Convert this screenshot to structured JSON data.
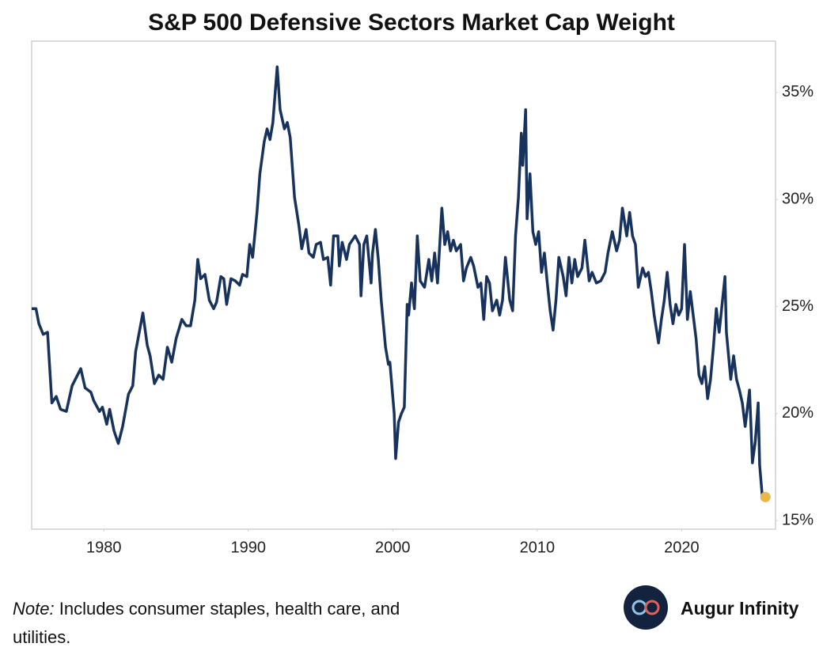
{
  "chart_data": {
    "type": "line",
    "title": "S&P 500 Defensive Sectors Market Cap Weight",
    "color": "#17325c",
    "highlight_color": "#e8b84a",
    "grid": false,
    "xlim": [
      1975,
      2026.5
    ],
    "xticks": [
      1980,
      1990,
      2000,
      2010,
      2020
    ],
    "ylim": [
      14.6,
      37.4
    ],
    "yticks": [
      {
        "value": 15,
        "label": "15%"
      },
      {
        "value": 20,
        "label": "20%"
      },
      {
        "value": 25,
        "label": "25%"
      },
      {
        "value": 30,
        "label": "30%"
      },
      {
        "value": 35,
        "label": "35%"
      }
    ],
    "x": [
      1975.0,
      1975.3,
      1975.5,
      1975.8,
      1976.1,
      1976.4,
      1976.7,
      1977.0,
      1977.4,
      1977.8,
      1978.4,
      1978.7,
      1979.1,
      1979.3,
      1979.7,
      1979.9,
      1980.2,
      1980.4,
      1980.7,
      1981.0,
      1981.3,
      1981.7,
      1982.0,
      1982.2,
      1982.7,
      1983.0,
      1983.2,
      1983.5,
      1983.8,
      1984.1,
      1984.4,
      1984.7,
      1985.0,
      1985.4,
      1985.7,
      1986.0,
      1986.3,
      1986.5,
      1986.7,
      1987.0,
      1987.3,
      1987.6,
      1987.8,
      1988.1,
      1988.3,
      1988.5,
      1988.8,
      1989.1,
      1989.4,
      1989.6,
      1989.9,
      1990.1,
      1990.3,
      1990.6,
      1990.8,
      1991.1,
      1991.3,
      1991.5,
      1991.7,
      1992.0,
      1992.2,
      1992.5,
      1992.7,
      1992.9,
      1993.2,
      1993.5,
      1993.7,
      1994.0,
      1994.2,
      1994.5,
      1994.7,
      1995.0,
      1995.2,
      1995.5,
      1995.7,
      1995.9,
      1996.2,
      1996.3,
      1996.5,
      1996.8,
      1997.0,
      1997.2,
      1997.4,
      1997.7,
      1997.8,
      1998.0,
      1998.2,
      1998.5,
      1998.6,
      1998.8,
      1999.0,
      1999.2,
      1999.5,
      1999.7,
      1999.8,
      2000.1,
      2000.2,
      2000.4,
      2000.6,
      2000.8,
      2001.0,
      2001.1,
      2001.3,
      2001.5,
      2001.7,
      2001.9,
      2002.2,
      2002.5,
      2002.7,
      2002.9,
      2003.1,
      2003.4,
      2003.6,
      2003.8,
      2004.0,
      2004.2,
      2004.4,
      2004.7,
      2004.9,
      2005.1,
      2005.4,
      2005.6,
      2005.9,
      2006.1,
      2006.3,
      2006.5,
      2006.7,
      2006.9,
      2007.2,
      2007.4,
      2007.6,
      2007.8,
      2008.1,
      2008.3,
      2008.5,
      2008.7,
      2008.9,
      2009.0,
      2009.2,
      2009.3,
      2009.5,
      2009.7,
      2009.9,
      2010.1,
      2010.3,
      2010.5,
      2010.7,
      2010.9,
      2011.1,
      2011.3,
      2011.5,
      2011.8,
      2012.0,
      2012.2,
      2012.4,
      2012.6,
      2012.8,
      2013.1,
      2013.3,
      2013.6,
      2013.8,
      2014.1,
      2014.4,
      2014.7,
      2014.9,
      2015.2,
      2015.5,
      2015.7,
      2015.9,
      2016.2,
      2016.4,
      2016.6,
      2016.8,
      2017.0,
      2017.3,
      2017.5,
      2017.7,
      2017.9,
      2018.1,
      2018.4,
      2018.6,
      2018.8,
      2019.0,
      2019.2,
      2019.4,
      2019.6,
      2019.8,
      2020.0,
      2020.2,
      2020.4,
      2020.6,
      2020.8,
      2021.0,
      2021.2,
      2021.4,
      2021.6,
      2021.8,
      2022.0,
      2022.2,
      2022.4,
      2022.6,
      2022.8,
      2023.0,
      2023.1,
      2023.4,
      2023.6,
      2023.8,
      2024.0,
      2024.2,
      2024.4,
      2024.7,
      2024.9,
      2025.1,
      2025.3,
      2025.4,
      2025.6,
      2025.8
    ],
    "values": [
      24.9,
      24.9,
      24.2,
      23.7,
      23.8,
      20.5,
      20.8,
      20.2,
      20.1,
      21.3,
      22.1,
      21.2,
      21.0,
      20.6,
      20.1,
      20.3,
      19.5,
      20.2,
      19.2,
      18.6,
      19.4,
      20.9,
      21.3,
      22.9,
      24.7,
      23.2,
      22.7,
      21.4,
      21.8,
      21.6,
      23.1,
      22.4,
      23.5,
      24.4,
      24.1,
      24.1,
      25.3,
      27.2,
      26.3,
      26.5,
      25.3,
      24.9,
      25.2,
      26.4,
      26.3,
      25.1,
      26.3,
      26.2,
      26.0,
      26.5,
      26.4,
      27.9,
      27.3,
      29.4,
      31.2,
      32.7,
      33.3,
      32.8,
      33.6,
      36.2,
      34.2,
      33.3,
      33.6,
      32.9,
      30.1,
      28.8,
      27.7,
      28.6,
      27.5,
      27.3,
      27.9,
      28.0,
      27.2,
      27.3,
      26.0,
      28.3,
      28.3,
      26.9,
      28.0,
      27.2,
      27.9,
      28.1,
      28.3,
      27.9,
      25.5,
      27.9,
      28.3,
      26.1,
      27.5,
      28.6,
      27.2,
      25.3,
      23.1,
      22.3,
      22.4,
      20.0,
      17.9,
      19.6,
      20.0,
      20.3,
      25.1,
      24.6,
      26.1,
      24.9,
      28.3,
      26.2,
      25.9,
      27.2,
      26.2,
      27.5,
      26.1,
      29.6,
      27.9,
      28.5,
      27.6,
      28.1,
      27.6,
      27.9,
      26.2,
      26.8,
      27.3,
      26.9,
      25.9,
      26.1,
      24.4,
      26.4,
      26.1,
      24.8,
      25.3,
      24.6,
      25.3,
      27.3,
      25.3,
      24.8,
      28.3,
      30.1,
      33.1,
      31.6,
      34.2,
      29.1,
      31.2,
      28.5,
      27.9,
      28.5,
      26.6,
      27.5,
      26.1,
      24.8,
      23.9,
      25.3,
      27.3,
      26.4,
      25.5,
      27.3,
      26.1,
      27.2,
      26.4,
      26.8,
      28.1,
      26.2,
      26.6,
      26.1,
      26.2,
      26.6,
      27.5,
      28.5,
      27.6,
      28.1,
      29.6,
      28.3,
      29.4,
      28.3,
      27.9,
      25.9,
      26.8,
      26.4,
      26.6,
      25.7,
      24.6,
      23.3,
      24.4,
      25.3,
      26.6,
      25.1,
      24.2,
      25.1,
      24.6,
      24.9,
      27.9,
      24.4,
      25.7,
      24.6,
      23.5,
      21.8,
      21.4,
      22.2,
      20.7,
      21.6,
      23.1,
      24.9,
      23.8,
      25.1,
      26.4,
      23.8,
      21.6,
      22.7,
      21.6,
      21.1,
      20.5,
      19.4,
      21.1,
      17.7,
      18.7,
      20.5,
      17.6,
      16.0,
      16.1
    ],
    "note_label": "Note:",
    "note": "Includes consumer staples, health care, and utilities.",
    "brand": "Augur Infinity"
  }
}
